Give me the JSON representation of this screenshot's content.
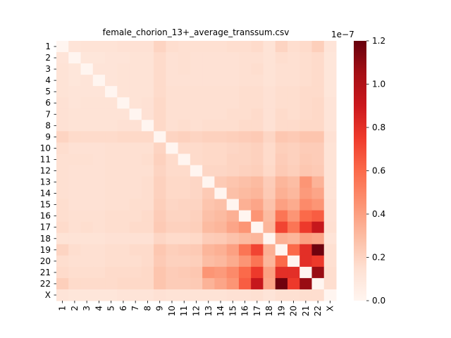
{
  "chart_data": {
    "type": "heatmap",
    "title": "female_chorion_13+_average_transsum.csv",
    "labels": [
      "1",
      "2",
      "3",
      "4",
      "5",
      "6",
      "7",
      "8",
      "9",
      "10",
      "11",
      "12",
      "13",
      "14",
      "15",
      "16",
      "17",
      "18",
      "19",
      "20",
      "21",
      "22",
      "X"
    ],
    "colorbar": {
      "min": 0.0,
      "max": 1.2e-07,
      "ticks": [
        0.0,
        0.2,
        0.4,
        0.6,
        0.8,
        1.0,
        1.2
      ],
      "tick_labels": [
        "0.0",
        "0.2",
        "0.4",
        "0.6",
        "0.8",
        "1.0",
        "1.2"
      ],
      "offset_text": "1e−7",
      "colormap": "Reds"
    },
    "matrix_units": "1e-7",
    "matrix": [
      [
        0.0,
        0.12,
        0.13,
        0.13,
        0.13,
        0.14,
        0.14,
        0.14,
        0.2,
        0.16,
        0.15,
        0.15,
        0.15,
        0.15,
        0.16,
        0.16,
        0.17,
        0.13,
        0.2,
        0.16,
        0.17,
        0.22,
        0.12
      ],
      [
        0.12,
        0.0,
        0.11,
        0.11,
        0.12,
        0.12,
        0.13,
        0.13,
        0.17,
        0.14,
        0.15,
        0.14,
        0.14,
        0.14,
        0.14,
        0.15,
        0.15,
        0.13,
        0.16,
        0.15,
        0.16,
        0.17,
        0.11
      ],
      [
        0.13,
        0.11,
        0.0,
        0.12,
        0.12,
        0.13,
        0.13,
        0.13,
        0.17,
        0.14,
        0.15,
        0.14,
        0.14,
        0.14,
        0.14,
        0.15,
        0.16,
        0.13,
        0.15,
        0.15,
        0.16,
        0.17,
        0.11
      ],
      [
        0.13,
        0.11,
        0.12,
        0.0,
        0.12,
        0.13,
        0.13,
        0.13,
        0.17,
        0.14,
        0.14,
        0.14,
        0.14,
        0.14,
        0.14,
        0.15,
        0.15,
        0.13,
        0.15,
        0.15,
        0.16,
        0.17,
        0.11
      ],
      [
        0.13,
        0.12,
        0.12,
        0.12,
        0.0,
        0.13,
        0.13,
        0.13,
        0.17,
        0.15,
        0.15,
        0.15,
        0.15,
        0.15,
        0.15,
        0.16,
        0.16,
        0.14,
        0.16,
        0.16,
        0.17,
        0.17,
        0.11
      ],
      [
        0.14,
        0.12,
        0.13,
        0.13,
        0.13,
        0.0,
        0.13,
        0.14,
        0.18,
        0.15,
        0.15,
        0.15,
        0.15,
        0.15,
        0.15,
        0.16,
        0.16,
        0.14,
        0.16,
        0.16,
        0.17,
        0.18,
        0.12
      ],
      [
        0.14,
        0.13,
        0.13,
        0.13,
        0.13,
        0.13,
        0.0,
        0.14,
        0.18,
        0.15,
        0.15,
        0.15,
        0.15,
        0.15,
        0.16,
        0.16,
        0.17,
        0.14,
        0.17,
        0.16,
        0.17,
        0.18,
        0.12
      ],
      [
        0.14,
        0.13,
        0.13,
        0.13,
        0.13,
        0.14,
        0.14,
        0.0,
        0.18,
        0.15,
        0.16,
        0.15,
        0.16,
        0.16,
        0.16,
        0.17,
        0.17,
        0.14,
        0.17,
        0.17,
        0.18,
        0.18,
        0.12
      ],
      [
        0.2,
        0.17,
        0.17,
        0.17,
        0.17,
        0.18,
        0.18,
        0.18,
        0.0,
        0.2,
        0.21,
        0.2,
        0.21,
        0.21,
        0.22,
        0.23,
        0.24,
        0.19,
        0.25,
        0.24,
        0.26,
        0.26,
        0.14
      ],
      [
        0.16,
        0.14,
        0.14,
        0.14,
        0.15,
        0.15,
        0.15,
        0.15,
        0.2,
        0.0,
        0.17,
        0.17,
        0.18,
        0.18,
        0.19,
        0.2,
        0.21,
        0.17,
        0.22,
        0.21,
        0.23,
        0.23,
        0.13
      ],
      [
        0.15,
        0.15,
        0.15,
        0.14,
        0.15,
        0.15,
        0.15,
        0.16,
        0.21,
        0.17,
        0.0,
        0.17,
        0.18,
        0.18,
        0.2,
        0.2,
        0.21,
        0.17,
        0.23,
        0.21,
        0.24,
        0.23,
        0.13
      ],
      [
        0.15,
        0.14,
        0.14,
        0.14,
        0.15,
        0.15,
        0.15,
        0.15,
        0.2,
        0.17,
        0.17,
        0.0,
        0.19,
        0.19,
        0.2,
        0.21,
        0.22,
        0.18,
        0.24,
        0.22,
        0.25,
        0.24,
        0.13
      ],
      [
        0.15,
        0.14,
        0.14,
        0.14,
        0.15,
        0.15,
        0.15,
        0.16,
        0.21,
        0.18,
        0.18,
        0.19,
        0.0,
        0.24,
        0.26,
        0.28,
        0.3,
        0.23,
        0.32,
        0.29,
        0.44,
        0.33,
        0.13
      ],
      [
        0.15,
        0.14,
        0.14,
        0.14,
        0.15,
        0.15,
        0.15,
        0.16,
        0.21,
        0.18,
        0.18,
        0.19,
        0.24,
        0.0,
        0.28,
        0.3,
        0.32,
        0.24,
        0.34,
        0.31,
        0.42,
        0.38,
        0.13
      ],
      [
        0.16,
        0.14,
        0.14,
        0.14,
        0.15,
        0.15,
        0.16,
        0.16,
        0.22,
        0.19,
        0.2,
        0.2,
        0.26,
        0.28,
        0.0,
        0.34,
        0.38,
        0.27,
        0.4,
        0.36,
        0.48,
        0.44,
        0.14
      ],
      [
        0.16,
        0.15,
        0.15,
        0.15,
        0.16,
        0.16,
        0.16,
        0.17,
        0.23,
        0.2,
        0.2,
        0.21,
        0.28,
        0.3,
        0.34,
        0.0,
        0.44,
        0.3,
        0.56,
        0.44,
        0.6,
        0.64,
        0.14
      ],
      [
        0.17,
        0.15,
        0.16,
        0.15,
        0.16,
        0.16,
        0.17,
        0.17,
        0.24,
        0.21,
        0.21,
        0.22,
        0.3,
        0.32,
        0.38,
        0.44,
        0.0,
        0.32,
        0.72,
        0.56,
        0.76,
        0.92,
        0.15
      ],
      [
        0.13,
        0.13,
        0.13,
        0.13,
        0.14,
        0.14,
        0.14,
        0.14,
        0.19,
        0.17,
        0.17,
        0.18,
        0.23,
        0.24,
        0.27,
        0.3,
        0.32,
        0.0,
        0.34,
        0.32,
        0.4,
        0.38,
        0.12
      ],
      [
        0.2,
        0.16,
        0.15,
        0.15,
        0.16,
        0.16,
        0.17,
        0.17,
        0.25,
        0.22,
        0.23,
        0.24,
        0.32,
        0.34,
        0.4,
        0.56,
        0.72,
        0.34,
        0.0,
        0.6,
        0.8,
        1.18,
        0.15
      ],
      [
        0.16,
        0.15,
        0.15,
        0.15,
        0.16,
        0.16,
        0.16,
        0.17,
        0.24,
        0.21,
        0.21,
        0.22,
        0.29,
        0.31,
        0.36,
        0.44,
        0.56,
        0.32,
        0.6,
        0.0,
        0.8,
        0.76,
        0.15
      ],
      [
        0.17,
        0.16,
        0.16,
        0.16,
        0.17,
        0.17,
        0.17,
        0.18,
        0.26,
        0.23,
        0.24,
        0.25,
        0.44,
        0.42,
        0.48,
        0.6,
        0.76,
        0.4,
        0.8,
        0.8,
        0.0,
        1.08,
        0.16
      ],
      [
        0.22,
        0.17,
        0.17,
        0.17,
        0.17,
        0.18,
        0.18,
        0.18,
        0.26,
        0.23,
        0.23,
        0.24,
        0.33,
        0.38,
        0.44,
        0.64,
        0.92,
        0.38,
        1.18,
        0.76,
        1.08,
        0.0,
        0.16
      ],
      [
        0.12,
        0.11,
        0.11,
        0.11,
        0.11,
        0.12,
        0.12,
        0.12,
        0.14,
        0.13,
        0.13,
        0.13,
        0.13,
        0.13,
        0.14,
        0.14,
        0.15,
        0.12,
        0.15,
        0.15,
        0.16,
        0.16,
        0.0
      ]
    ]
  }
}
